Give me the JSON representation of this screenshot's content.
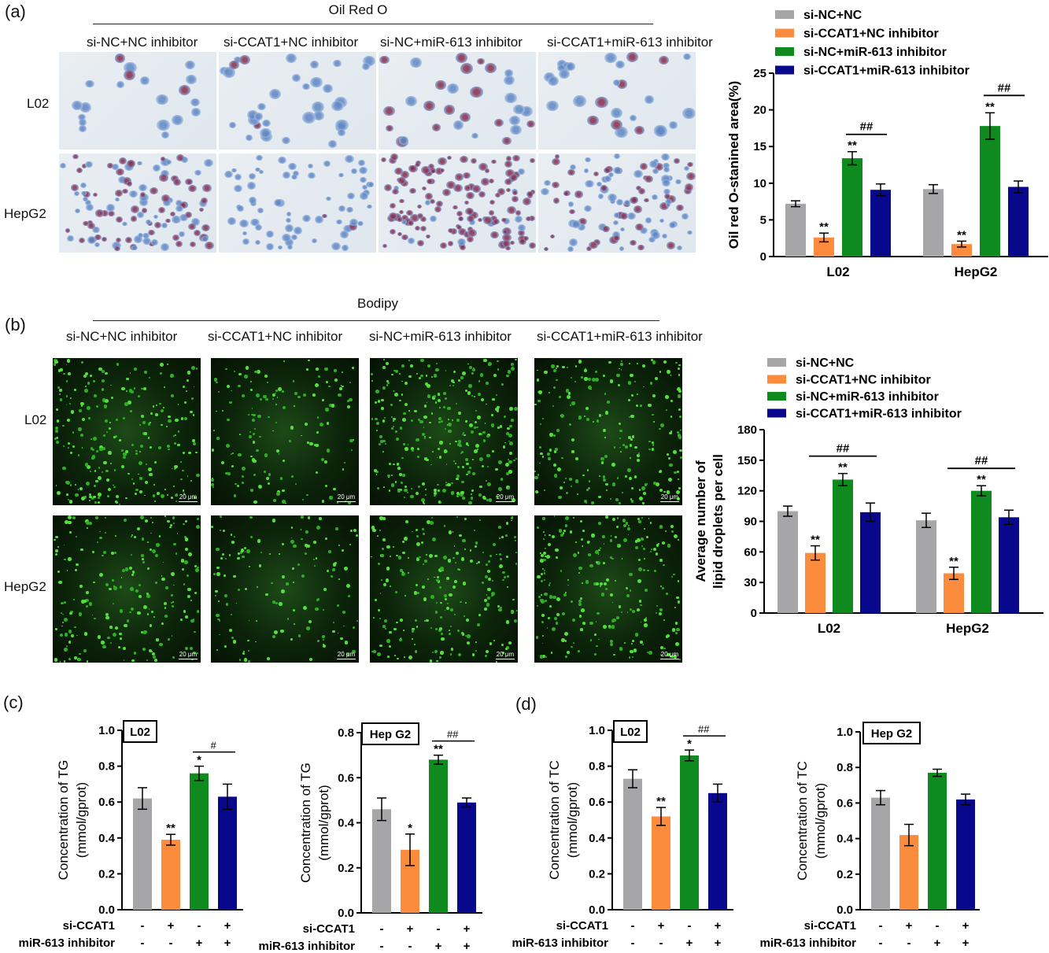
{
  "panels": {
    "a": {
      "label": "(a)",
      "title": "Oil Red O",
      "conditions": [
        "si-NC+NC inhibitor",
        "si-CCAT1+NC inhibitor",
        "si-NC+miR-613 inhibitor",
        "si-CCAT1+miR-613 inhibitor"
      ],
      "rows": [
        "L02",
        "HepG2"
      ]
    },
    "b": {
      "label": "(b)",
      "title": "Bodipy",
      "conditions": [
        "si-NC+NC inhibitor",
        "si-CCAT1+NC inhibitor",
        "si-NC+miR-613 inhibitor",
        "si-CCAT1+miR-613 inhibitor"
      ],
      "rows": [
        "L02",
        "HepG2"
      ],
      "scalebar": "20 μm"
    },
    "c": {
      "label": "(c)"
    },
    "d": {
      "label": "(d)"
    }
  },
  "colors": {
    "gray": "#a6a6a8",
    "orange": "#fb8c3e",
    "green": "#0f8a1e",
    "navy": "#08088c"
  },
  "chart_data": [
    {
      "id": "oil-red-chart",
      "type": "bar",
      "categories": [
        "L02",
        "HepG2"
      ],
      "series": [
        {
          "name": "si-NC+NC",
          "values": [
            7.2,
            9.2
          ],
          "errors": [
            0.4,
            0.6
          ],
          "sig": [
            "",
            ""
          ]
        },
        {
          "name": "si-CCAT1+NC inhibitor",
          "values": [
            2.6,
            1.7
          ],
          "errors": [
            0.6,
            0.4
          ],
          "sig": [
            "**",
            "**"
          ]
        },
        {
          "name": "si-NC+miR-613 inhibitor",
          "values": [
            13.4,
            17.8
          ],
          "errors": [
            0.9,
            1.8
          ],
          "sig": [
            "**",
            "**"
          ]
        },
        {
          "name": "si-CCAT1+miR-613 inhibitor",
          "values": [
            9.1,
            9.5
          ],
          "errors": [
            0.8,
            0.8
          ],
          "sig": [
            "",
            ""
          ]
        }
      ],
      "brackets": [
        {
          "category": 0,
          "from": 2,
          "to": 3,
          "label": "##"
        },
        {
          "category": 1,
          "from": 2,
          "to": 3,
          "label": "##"
        }
      ],
      "ylabel": "Oil red O-stanined area(%)",
      "ylim": [
        0,
        25
      ],
      "yticks": [
        0,
        5,
        10,
        15,
        20,
        25
      ],
      "legend": "top"
    },
    {
      "id": "bodipy-chart",
      "type": "bar",
      "categories": [
        "L02",
        "HepG2"
      ],
      "series": [
        {
          "name": "si-NC+NC",
          "values": [
            100,
            91
          ],
          "errors": [
            5,
            7
          ],
          "sig": [
            "",
            ""
          ]
        },
        {
          "name": "si-CCAT1+NC inhibitor",
          "values": [
            59,
            39
          ],
          "errors": [
            7,
            6
          ],
          "sig": [
            "**",
            "**"
          ]
        },
        {
          "name": "si-NC+miR-613 inhibitor",
          "values": [
            131,
            120
          ],
          "errors": [
            6,
            5
          ],
          "sig": [
            "**",
            "**"
          ]
        },
        {
          "name": "si-CCAT1+miR-613 inhibitor",
          "values": [
            99,
            94
          ],
          "errors": [
            9,
            7
          ],
          "sig": [
            "",
            ""
          ]
        }
      ],
      "brackets": [
        {
          "category": 0,
          "from": 1,
          "to": 3,
          "label": "##"
        },
        {
          "category": 1,
          "from": 1,
          "to": 3,
          "label": "##"
        }
      ],
      "ylabel": [
        "Average number of",
        "lipid droplets per cell"
      ],
      "ylim": [
        0,
        180
      ],
      "yticks": [
        0,
        30,
        60,
        90,
        120,
        150,
        180
      ],
      "legend": "top"
    },
    {
      "id": "tg-l02-chart",
      "type": "bar",
      "tag": "L02",
      "values": [
        0.62,
        0.39,
        0.76,
        0.63
      ],
      "errors": [
        0.06,
        0.03,
        0.04,
        0.07
      ],
      "sig": [
        "",
        "**",
        "*",
        ""
      ],
      "bracket": {
        "from": 2,
        "to": 3,
        "label": "#"
      },
      "ylabel": [
        "Concentration of TG",
        "(mmol/gprot)"
      ],
      "ylim": [
        0,
        1.0
      ],
      "yticks": [
        "0.0",
        "0.2",
        "0.4",
        "0.6",
        "0.8",
        "1.0"
      ],
      "rows": [
        {
          "label": "si-CCAT1",
          "marks": [
            "-",
            "+",
            "-",
            "+"
          ]
        },
        {
          "label": "miR-613 inhibitor",
          "marks": [
            "-",
            "-",
            "+",
            "+"
          ]
        }
      ]
    },
    {
      "id": "tg-hepg2-chart",
      "type": "bar",
      "tag": "Hep G2",
      "values": [
        0.46,
        0.28,
        0.68,
        0.49
      ],
      "errors": [
        0.05,
        0.07,
        0.02,
        0.02
      ],
      "sig": [
        "",
        "*",
        "**",
        ""
      ],
      "bracket": {
        "from": 2,
        "to": 3,
        "label": "##"
      },
      "ylabel": [
        "Concentration of TG",
        "(mmol/gprot)"
      ],
      "ylim": [
        0,
        0.8
      ],
      "yticks": [
        "0.0",
        "0.2",
        "0.4",
        "0.6",
        "0.8"
      ],
      "rows": [
        {
          "label": "si-CCAT1",
          "marks": [
            "-",
            "+",
            "-",
            "+"
          ]
        },
        {
          "label": "miR-613 inhibitor",
          "marks": [
            "-",
            "-",
            "+",
            "+"
          ]
        }
      ]
    },
    {
      "id": "tc-l02-chart",
      "type": "bar",
      "tag": "L02",
      "values": [
        0.73,
        0.52,
        0.86,
        0.65
      ],
      "errors": [
        0.05,
        0.05,
        0.03,
        0.05
      ],
      "sig": [
        "",
        "**",
        "*",
        ""
      ],
      "bracket": {
        "from": 2,
        "to": 3,
        "label": "##"
      },
      "ylabel": [
        "Concentration of TC",
        "(mmol/gprot)"
      ],
      "ylim": [
        0,
        1.0
      ],
      "yticks": [
        "0.0",
        "0.2",
        "0.4",
        "0.6",
        "0.8",
        "1.0"
      ],
      "rows": [
        {
          "label": "si-CCAT1",
          "marks": [
            "-",
            "+",
            "-",
            "+"
          ]
        },
        {
          "label": "miR-613 inhibitor",
          "marks": [
            "-",
            "-",
            "+",
            "+"
          ]
        }
      ]
    },
    {
      "id": "tc-hepg2-chart",
      "type": "bar",
      "tag": "Hep G2",
      "values": [
        0.63,
        0.42,
        0.77,
        0.62
      ],
      "errors": [
        0.04,
        0.06,
        0.02,
        0.03
      ],
      "sig": [
        "",
        "",
        "",
        ""
      ],
      "bracket": null,
      "ylabel": [
        "Concentration of TC",
        "(mmol/gprot)"
      ],
      "ylim": [
        0,
        1.0
      ],
      "yticks": [
        "0.0",
        "0.2",
        "0.4",
        "0.6",
        "0.8",
        "1.0"
      ],
      "rows": [
        {
          "label": "si-CCAT1",
          "marks": [
            "-",
            "+",
            "-",
            "+"
          ]
        },
        {
          "label": "miR-613 inhibitor",
          "marks": [
            "-",
            "-",
            "+",
            "+"
          ]
        }
      ]
    }
  ]
}
